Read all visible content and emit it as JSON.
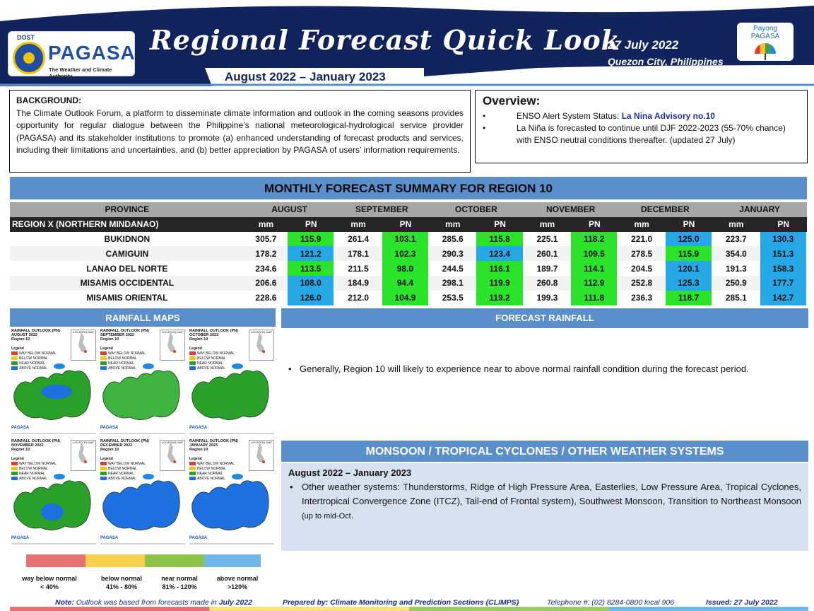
{
  "header": {
    "dost": "DOST",
    "agency": "PAGASA",
    "tagline": "The Weather and Climate Authority",
    "title": "Regional Forecast Quick Look",
    "period": "August 2022 – January 2023",
    "date": "27 July 2022",
    "place": "Quezon City, Philippines",
    "payong_line1": "Payong",
    "payong_line2": "PAGASA",
    "colors": {
      "navy": "#12245e",
      "accent": "#5b8fcc"
    }
  },
  "background": {
    "heading": "BACKGROUND:",
    "text": "The Climate Outlook Forum, a platform to disseminate climate information and outlook in the coming seasons provides opportunity for regular dialogue between the Philippine’s national meteorological-hydrological service provider (PAGASA) and its stakeholder institutions to promote (a) enhanced understanding of forecast products and services, including their limitations and uncertainties, and (b) better appreciation by PAGASA of users’ information requirements."
  },
  "overview": {
    "heading": "Overview:",
    "enso_label": "ENSO Alert System Status: ",
    "enso_status": "La Nina Advisory no.10",
    "la_nina": "La Niña is forecasted to continue until DJF 2022-2023  (55-70% chance) with ENSO neutral conditions thereafter. (updated 27 July)"
  },
  "summary": {
    "heading": "MONTHLY FORECAST SUMMARY FOR REGION 10",
    "province_header": "PROVINCE",
    "region_label": "REGION X (NORTHERN MINDANAO)",
    "months": [
      "AUGUST",
      "SEPTEMBER",
      "OCTOBER",
      "NOVEMBER",
      "DECEMBER",
      "JANUARY"
    ],
    "unit_mm": "mm",
    "unit_pn": "PN",
    "rows": [
      {
        "province": "BUKIDNON",
        "values": [
          [
            "305.7",
            "115.9",
            "g"
          ],
          [
            "261.4",
            "103.1",
            "g"
          ],
          [
            "285.6",
            "115.8",
            "g"
          ],
          [
            "225.1",
            "118.2",
            "g"
          ],
          [
            "221.0",
            "125.0",
            "b"
          ],
          [
            "223.7",
            "130.3",
            "b"
          ]
        ]
      },
      {
        "province": "CAMIGUIN",
        "values": [
          [
            "178.2",
            "121.2",
            "b"
          ],
          [
            "178.1",
            "102.3",
            "g"
          ],
          [
            "290.3",
            "123.4",
            "b"
          ],
          [
            "260.1",
            "109.5",
            "g"
          ],
          [
            "278.5",
            "115.9",
            "g"
          ],
          [
            "354.0",
            "151.3",
            "b"
          ]
        ]
      },
      {
        "province": "LANAO DEL NORTE",
        "values": [
          [
            "234.6",
            "113.5",
            "g"
          ],
          [
            "211.5",
            "98.0",
            "g"
          ],
          [
            "244.5",
            "116.1",
            "g"
          ],
          [
            "189.7",
            "114.1",
            "g"
          ],
          [
            "204.5",
            "120.1",
            "b"
          ],
          [
            "191.3",
            "158.3",
            "b"
          ]
        ]
      },
      {
        "province": "MISAMIS OCCIDENTAL",
        "values": [
          [
            "206.6",
            "108.0",
            "b"
          ],
          [
            "184.9",
            "94.4",
            "g"
          ],
          [
            "298.1",
            "119.9",
            "g"
          ],
          [
            "260.8",
            "112.9",
            "g"
          ],
          [
            "252.8",
            "125.3",
            "b"
          ],
          [
            "250.9",
            "177.7",
            "b"
          ]
        ]
      },
      {
        "province": "MISAMIS ORIENTAL",
        "values": [
          [
            "228.6",
            "126.0",
            "b"
          ],
          [
            "212.0",
            "104.9",
            "g"
          ],
          [
            "253.5",
            "119.2",
            "g"
          ],
          [
            "199.3",
            "111.8",
            "g"
          ],
          [
            "236.3",
            "118.7",
            "g"
          ],
          [
            "285.1",
            "142.7",
            "b"
          ]
        ]
      }
    ]
  },
  "rainfall_maps": {
    "heading": "RAINFALL MAPS",
    "maps": [
      {
        "title": "RAINFALL OUTLOOK (PN)",
        "month": "AUGUST 2022",
        "region": "Region 10",
        "fill": "#2aa02a"
      },
      {
        "title": "RAINFALL OUTLOOK (PN)",
        "month": "SEPTEMBER 2022",
        "region": "Region 10",
        "fill": "#3fb23f"
      },
      {
        "title": "RAINFALL OUTLOOK (PN)",
        "month": "OCTOBER 2022",
        "region": "Region 10",
        "fill": "#2aa02a"
      },
      {
        "title": "RAINFALL OUTLOOK (PN)",
        "month": "NOVEMBER 2022",
        "region": "Region 10",
        "fill": "#2aa02a"
      },
      {
        "title": "RAINFALL OUTLOOK (PN)",
        "month": "DECEMBER 2022",
        "region": "Region 10",
        "fill": "#1e6fe0"
      },
      {
        "title": "RAINFALL OUTLOOK (PN)",
        "month": "JANUARY 2023",
        "region": "Region 10",
        "fill": "#1e6fe0"
      }
    ],
    "legend_heading": "Legend",
    "legend_items": [
      "WAY BELOW NORMAL",
      "BELOW NORMAL",
      "NEAR NORMAL",
      "ABOVE NORMAL"
    ],
    "location_label": "LOCATION MAP"
  },
  "forecast_rainfall": {
    "heading": "FORECAST RAINFALL",
    "text": "Generally, Region 10 will likely to experience near to above  normal rainfall condition during the forecast period."
  },
  "monsoon": {
    "heading": "MONSOON / TROPICAL CYCLONES / OTHER WEATHER SYSTEMS",
    "period": "August 2022 – January 2023",
    "text": "Other weather systems: Thunderstorms,  Ridge of High Pressure Area,  Easterlies, Low Pressure Area, Tropical Cyclones, Intertropical Convergence Zone (ITCZ), Tail-end of Frontal system), Southwest Monsoon, Transition to Northeast Monsoon ",
    "note": "(up to mid-Oct",
    "end": "."
  },
  "legend": [
    {
      "label": "way below normal",
      "range": "< 40%",
      "color": "#e57373"
    },
    {
      "label": "below normal",
      "range": "41% - 80%",
      "color": "#f6d04d"
    },
    {
      "label": "near normal",
      "range": "81% - 120%",
      "color": "#8bc34a"
    },
    {
      "label": "above normal",
      "range": ">120%",
      "color": "#6fb7e9"
    }
  ],
  "footer": {
    "note_label": "Note:",
    "note_text": " Outlook was based from forecasts made in ",
    "note_month": "July 2022",
    "prepared": "Prepared by: Climate Monitoring and Prediction Sections (CLIMPS)",
    "telephone": "Telephone #: (02) 8284-0800 local 906",
    "issued": "Issued: 27 July 2022"
  }
}
